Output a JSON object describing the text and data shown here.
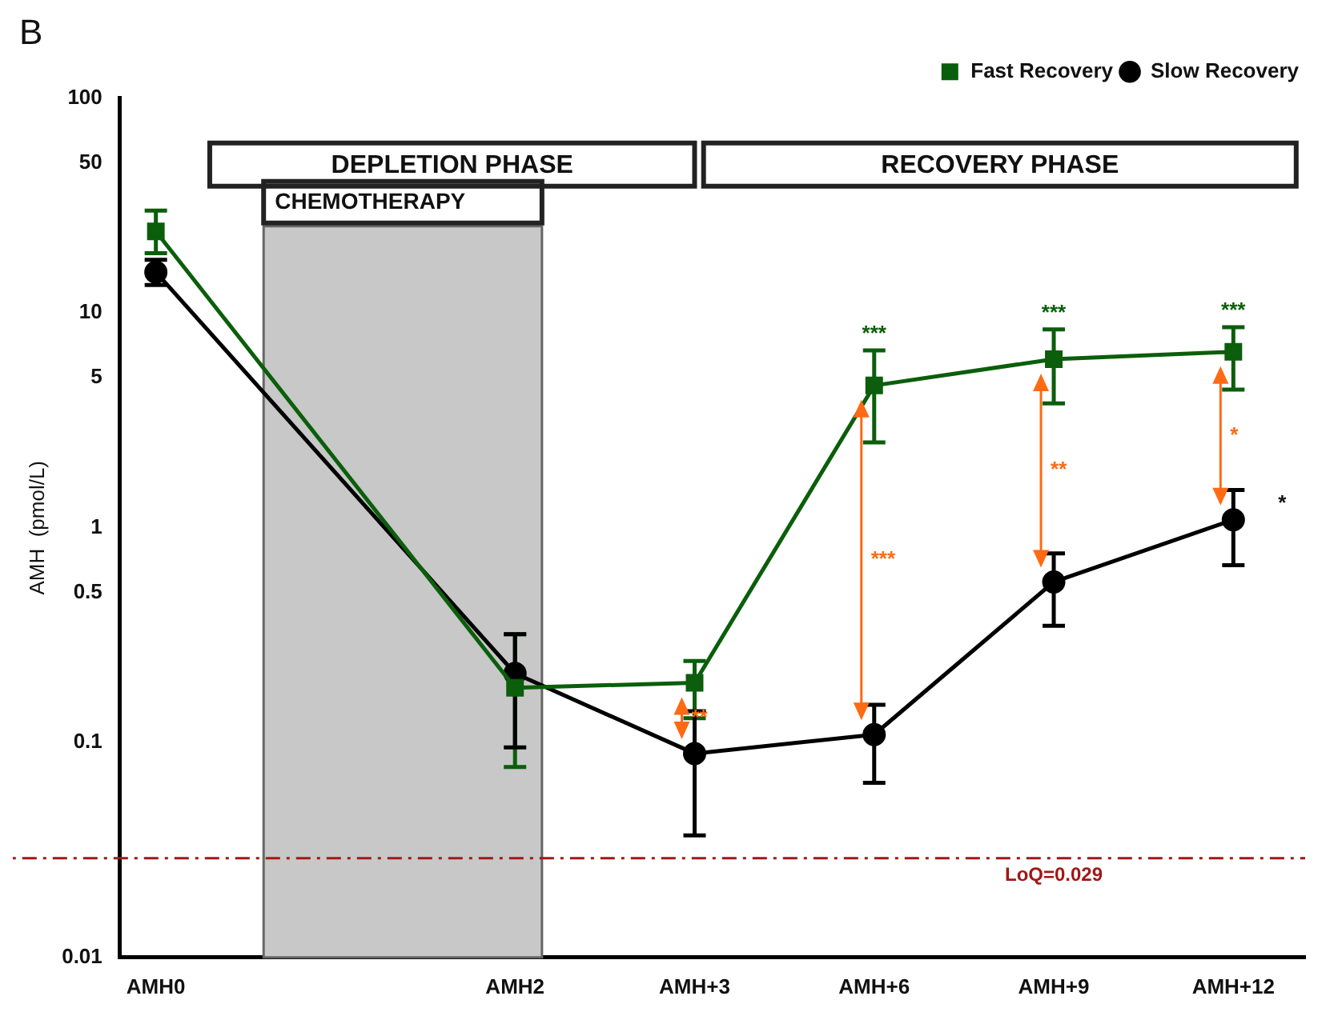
{
  "chart_data": {
    "type": "line",
    "title": "B",
    "ylabel": "AMH  (pmol/L)",
    "log": "y",
    "legend": "top right",
    "grid": false,
    "categories": [
      "AMH0",
      null,
      "AMH2",
      "AMH+3",
      "AMH+6",
      "AMH+9",
      "AMH+12"
    ],
    "ylim": [
      0.01,
      100
    ],
    "yticks": [
      0.01,
      0.1,
      0.5,
      1,
      5,
      10,
      50,
      100
    ],
    "series": [
      {
        "name": "Fast Recovery",
        "color": "#0b5e0b",
        "marker": "square",
        "values": [
          24,
          null,
          0.18,
          0.19,
          4.6,
          6.1,
          6.6
        ],
        "errors": [
          [
            19,
            30
          ],
          null,
          [
            0.077,
            0.32
          ],
          [
            0.13,
            0.24
          ],
          [
            2.5,
            6.7
          ],
          [
            3.8,
            8.4
          ],
          [
            4.4,
            8.6
          ]
        ]
      },
      {
        "name": "Slow Recovery",
        "color": "#000000",
        "marker": "circle",
        "values": [
          15.5,
          null,
          0.21,
          0.089,
          0.109,
          0.56,
          1.09
        ],
        "errors": [
          [
            13.5,
            17.7
          ],
          null,
          [
            0.095,
            0.32
          ],
          [
            0.037,
            0.14
          ],
          [
            0.065,
            0.15
          ],
          [
            0.35,
            0.76
          ],
          [
            0.67,
            1.5
          ]
        ]
      }
    ],
    "bands": [
      {
        "axis": "x",
        "from": "AMH0",
        "to": "AMH2",
        "label": "CHEMOTHERAPY",
        "color": "#c8c8c8"
      }
    ],
    "ref_lines": [
      {
        "axis": "y",
        "value": 0.029,
        "label": "LoQ=0.029",
        "color": "#a01818",
        "line_style": "dashed"
      }
    ],
    "annotations": [
      "DEPLETION PHASE",
      "RECOVERY PHASE",
      "***",
      "***",
      "***",
      "**",
      "***",
      "**",
      "*",
      "*"
    ]
  }
}
